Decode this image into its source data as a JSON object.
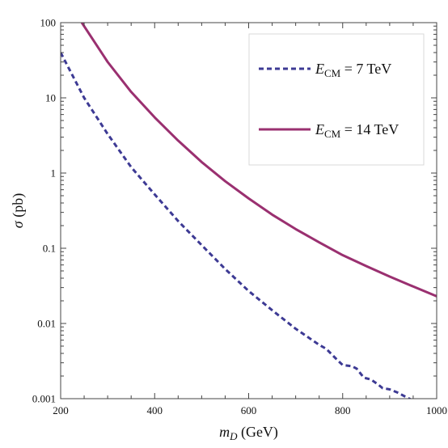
{
  "chart_data": {
    "type": "line",
    "title": "",
    "xlabel": {
      "main": "m",
      "sub": "D",
      "rest": " (GeV)"
    },
    "ylabel": {
      "main": "σ",
      "rest": " (pb)"
    },
    "xlim": [
      200,
      1000
    ],
    "ylim": [
      0.001,
      100
    ],
    "yscale": "log",
    "x_ticks": [
      200,
      400,
      600,
      800,
      1000
    ],
    "x_tick_labels": [
      "200",
      "400",
      "600",
      "800",
      "1000"
    ],
    "y_ticks": [
      0.001,
      0.01,
      0.1,
      1,
      10,
      100
    ],
    "y_tick_labels": [
      "0.001",
      "0.01",
      "0.1",
      "1",
      "10",
      "100"
    ],
    "grid": false,
    "legend_position": "top-right",
    "series": [
      {
        "legend": {
          "main": "E",
          "sub": "CM",
          "rest": " = 7 TeV"
        },
        "color": "#3d3a94",
        "style": "dashed",
        "x": [
          200,
          250,
          300,
          350,
          400,
          450,
          500,
          550,
          600,
          650,
          700,
          750,
          765,
          790,
          800,
          820,
          830,
          845,
          860,
          875,
          885,
          900,
          915,
          950,
          1000
        ],
        "y": [
          40,
          10,
          3.3,
          1.2,
          0.52,
          0.23,
          0.11,
          0.053,
          0.027,
          0.015,
          0.0085,
          0.0052,
          0.0046,
          0.0032,
          0.0028,
          0.0027,
          0.0025,
          0.0019,
          0.0018,
          0.00155,
          0.00138,
          0.00133,
          0.00122,
          0.00094,
          0.0006
        ]
      },
      {
        "legend": {
          "main": "E",
          "sub": "CM",
          "rest": " = 14 TeV"
        },
        "color": "#9a3070",
        "style": "solid",
        "x": [
          245,
          300,
          350,
          400,
          450,
          500,
          550,
          600,
          650,
          700,
          750,
          800,
          850,
          900,
          950,
          1000
        ],
        "y": [
          100,
          30,
          12,
          5.5,
          2.7,
          1.4,
          0.78,
          0.46,
          0.28,
          0.18,
          0.12,
          0.081,
          0.058,
          0.042,
          0.031,
          0.023
        ]
      }
    ]
  }
}
